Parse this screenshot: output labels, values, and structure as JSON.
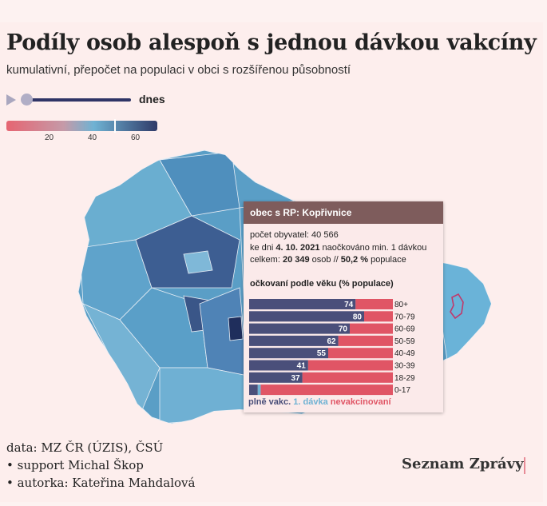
{
  "title": "Podíly osob alespoň s jednou dávkou vakcíny",
  "subtitle": "kumulativní, přepočet na populaci v obci s rozšířenou působností",
  "slider": {
    "label": "dnes",
    "value": 0.0
  },
  "legend": {
    "ticks": [
      "20",
      "40",
      "60"
    ],
    "tick_values": [
      20,
      40,
      60
    ],
    "min": 0,
    "max": 70,
    "current_value": 50.2,
    "colors": [
      "#e66572",
      "#c59aa8",
      "#6fb2d3",
      "#2f3a68"
    ]
  },
  "tooltip": {
    "header": "obec s RP: Kopřivnice",
    "population_line": "počet obyvatel: 40 566",
    "date_prefix": "ke dni ",
    "date": "4. 10. 2021",
    "date_suffix": " naočkováno min. 1 dávkou",
    "total_prefix": "celkem: ",
    "total": "20 349",
    "total_mid": " osob // ",
    "percent": "50,2 %",
    "total_suffix": " populace",
    "section_title": "očkovaní podle věku (% populace)",
    "age_groups": [
      {
        "label": "80+",
        "full": 74,
        "one": 0,
        "full_label": "74"
      },
      {
        "label": "70-79",
        "full": 80,
        "one": 0,
        "full_label": "80"
      },
      {
        "label": "60-69",
        "full": 70,
        "one": 0,
        "full_label": "70"
      },
      {
        "label": "50-59",
        "full": 62,
        "one": 0,
        "full_label": "62"
      },
      {
        "label": "40-49",
        "full": 55,
        "one": 0,
        "full_label": "55"
      },
      {
        "label": "30-39",
        "full": 41,
        "one": 0,
        "full_label": "41"
      },
      {
        "label": "18-29",
        "full": 37,
        "one": 0,
        "full_label": "37"
      },
      {
        "label": "0-17",
        "full": 6,
        "one": 2,
        "full_label": ""
      }
    ],
    "legend_full": "plně vakc.",
    "legend_one": "1. dávka",
    "legend_none": "nevakcinovaní"
  },
  "footer": {
    "source": "data: MZ ČR (ÚZIS), ČSÚ",
    "support": "• support Michal Škop",
    "author": "• autorka: Kateřina Mahdalová"
  },
  "brand": "Seznam Zprávy",
  "colors": {
    "full": "#4a4f7a",
    "one_dose": "#6fb2d3",
    "none": "#e05565",
    "highlight_outline": "#c0396b"
  }
}
